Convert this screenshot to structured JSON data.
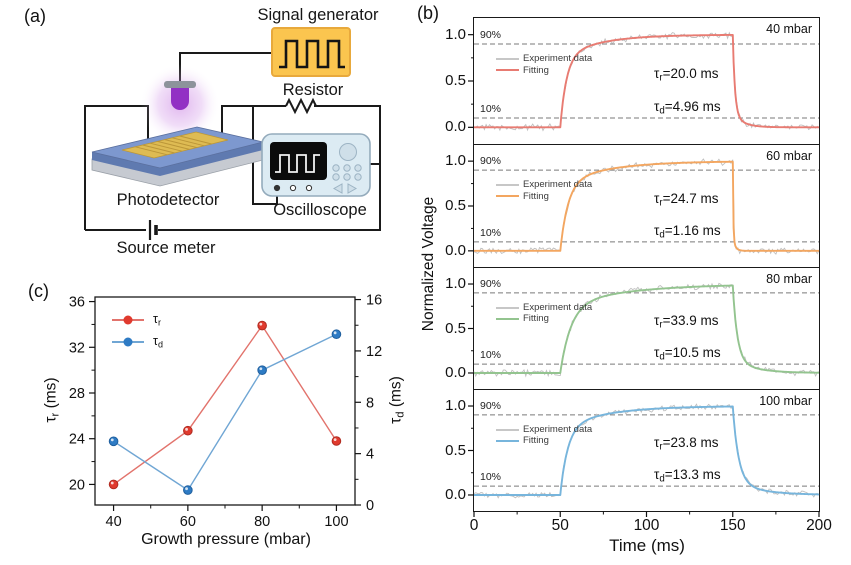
{
  "panel_a": {
    "label": "(a)",
    "signal_generator_label": "Signal generator",
    "resistor_label": "Resistor",
    "photodetector_label": "Photodetector",
    "oscilloscope_label": "Oscilloscope",
    "source_meter_label": "Source meter"
  },
  "panel_b": {
    "label": "(b)",
    "ylabel": "Normalized Voltage",
    "xlabel": "Time (ms)",
    "percent_high": "90%",
    "percent_low": "10%",
    "legend_experiment": "Experiment data",
    "legend_fitting": "Fitting",
    "subplots": [
      {
        "pressure_label": "40 mbar",
        "tau_r_sym": "τ",
        "tau_r_sub": "r",
        "tau_r_val": "=20.0 ms",
        "tau_d_sym": "τ",
        "tau_d_sub": "d",
        "tau_d_val": "=4.96 ms"
      },
      {
        "pressure_label": "60 mbar",
        "tau_r_sym": "τ",
        "tau_r_sub": "r",
        "tau_r_val": "=24.7 ms",
        "tau_d_sym": "τ",
        "tau_d_sub": "d",
        "tau_d_val": "=1.16 ms"
      },
      {
        "pressure_label": "80 mbar",
        "tau_r_sym": "τ",
        "tau_r_sub": "r",
        "tau_r_val": "=33.9 ms",
        "tau_d_sym": "τ",
        "tau_d_sub": "d",
        "tau_d_val": "=10.5 ms"
      },
      {
        "pressure_label": "100 mbar",
        "tau_r_sym": "τ",
        "tau_r_sub": "r",
        "tau_r_val": "=23.8 ms",
        "tau_d_sym": "τ",
        "tau_d_sub": "d",
        "tau_d_val": "=13.3 ms"
      }
    ]
  },
  "panel_c": {
    "label": "(c)",
    "xlabel": "Growth pressure (mbar)",
    "left_axis_sym": "τ",
    "left_axis_sub": "r",
    "left_axis_unit": " (ms)",
    "right_axis_sym": "τ",
    "right_axis_sub": "d",
    "right_axis_unit": " (ms)",
    "legend": [
      {
        "sym": "τ",
        "sub": "r"
      },
      {
        "sym": "τ",
        "sub": "d"
      }
    ]
  },
  "chart_data": [
    {
      "type": "line",
      "title": "Normalized photoresponse transients at four growth pressures",
      "xlabel": "Time (ms)",
      "ylabel": "Normalized Voltage",
      "xlim": [
        0,
        200
      ],
      "x_ticks": [
        0,
        50,
        100,
        150,
        200
      ],
      "ylim": [
        -0.18,
        1.18
      ],
      "y_ticks": [
        0.0,
        0.5,
        1.0
      ],
      "reference_levels": [
        0.9,
        0.1
      ],
      "pulse_on_ms": 50,
      "pulse_off_ms": 150,
      "legend_entries": [
        "Experiment data",
        "Fitting"
      ],
      "series": [
        {
          "name": "40 mbar",
          "color": "#e87b72",
          "tau_r_ms": 20.0,
          "tau_d_ms": 4.96
        },
        {
          "name": "60 mbar",
          "color": "#f3a660",
          "tau_r_ms": 24.7,
          "tau_d_ms": 1.16
        },
        {
          "name": "80 mbar",
          "color": "#93c48f",
          "tau_r_ms": 33.9,
          "tau_d_ms": 10.5
        },
        {
          "name": "100 mbar",
          "color": "#77b5dc",
          "tau_r_ms": 23.8,
          "tau_d_ms": 13.3
        }
      ]
    },
    {
      "type": "line",
      "title": "Rise and decay time vs growth pressure",
      "x": [
        40,
        60,
        80,
        100
      ],
      "xlabel": "Growth pressure (mbar)",
      "xlim": [
        35,
        105
      ],
      "x_ticks": [
        40,
        60,
        80,
        100
      ],
      "x_minor_ticks": [
        50,
        70,
        90
      ],
      "left_ylabel": "τr (ms)",
      "left_ylim": [
        18.2,
        36.4
      ],
      "left_ticks": [
        20,
        24,
        28,
        32,
        36
      ],
      "left_minor_ticks": [
        22,
        26,
        30,
        34
      ],
      "right_ylabel": "τd (ms)",
      "right_ylim": [
        0,
        16.2
      ],
      "right_ticks": [
        0,
        4,
        8,
        12,
        16
      ],
      "right_minor_ticks": [
        2,
        6,
        10,
        14
      ],
      "legend_position": "upper-left",
      "series": [
        {
          "name": "τr",
          "axis": "left",
          "color": "#e03a2e",
          "edge": "#b02b20",
          "line_color": "#e2736c",
          "values": [
            20.0,
            24.7,
            33.9,
            23.8
          ]
        },
        {
          "name": "τd",
          "axis": "right",
          "color": "#2e7bc4",
          "edge": "#1f5f9e",
          "line_color": "#70a6d4",
          "values": [
            4.96,
            1.16,
            10.5,
            13.3
          ]
        }
      ]
    }
  ]
}
